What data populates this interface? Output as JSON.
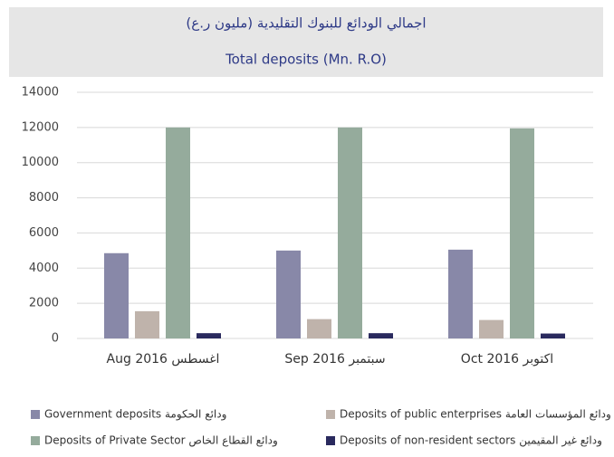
{
  "chart_data": {
    "type": "bar",
    "title": "اجمالي الودائع للبنوك التقليدية (مليون ر.ع)",
    "subtitle": "Total deposits (Mn. R.O)",
    "categories": [
      "Aug 2016 اغسطس",
      "Sep 2016 سبتمبر",
      "Oct 2016 اكتوبر"
    ],
    "series": [
      {
        "name": "Government deposits ودائع الحكومة",
        "color": "#8888a8",
        "values": [
          4850,
          5000,
          5050
        ]
      },
      {
        "name": "Deposits of public enterprises ودائع المؤسسات العامة",
        "color": "#bfb3ab",
        "values": [
          1550,
          1100,
          1050
        ]
      },
      {
        "name": "Deposits of Private Sector ودائع القطاع الخاص",
        "color": "#95ab9c",
        "values": [
          12000,
          12000,
          11950
        ]
      },
      {
        "name": "Deposits of non-resident sectors ودائع غير المقيمين",
        "color": "#2a2a5e",
        "values": [
          300,
          300,
          280
        ]
      }
    ],
    "ylim": [
      0,
      14000
    ],
    "yticks": [
      0,
      2000,
      4000,
      6000,
      8000,
      10000,
      12000,
      14000
    ],
    "grid": true
  }
}
